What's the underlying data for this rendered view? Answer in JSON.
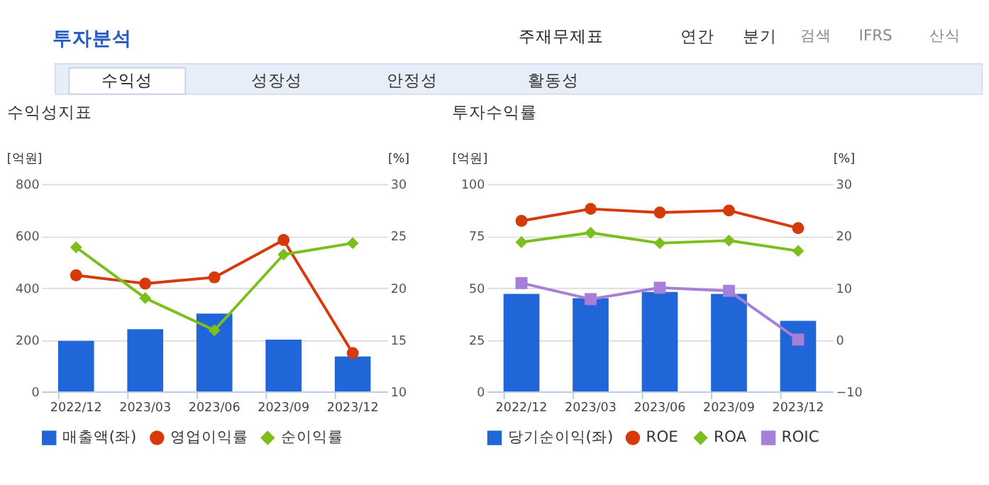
{
  "chart_data": [
    {
      "type": "bar",
      "title": "수익성지표",
      "ylabel": "[억원]",
      "y2label": "[%]",
      "annotations": [
        "투자분석",
        "주재무제표",
        "연간",
        "분기",
        "검색",
        "IFRS",
        "산식",
        "수익성",
        "성장성",
        "안정성",
        "활동성"
      ],
      "categories": [
        "2022/12",
        "2023/03",
        "2023/06",
        "2023/09",
        "2023/12"
      ],
      "series": [
        {
          "name": "매출액(좌)",
          "color": "#2166d9",
          "values": [
            195,
            240,
            300,
            200,
            135
          ]
        },
        {
          "name": "영업이익률",
          "type": "line",
          "axis": "y2",
          "marker": "circle",
          "color": "#d63a0a",
          "values": [
            21.2,
            20.4,
            21.0,
            24.6,
            13.7
          ]
        },
        {
          "name": "순이익률",
          "type": "line",
          "axis": "y2",
          "marker": "diamond",
          "color": "#7cbf1c",
          "values": [
            23.9,
            19.0,
            15.9,
            23.2,
            24.3
          ]
        }
      ],
      "ylim": [
        0,
        800
      ],
      "yticks": [
        0,
        200,
        400,
        600,
        800
      ],
      "y2lim": [
        10,
        30
      ],
      "y2ticks": [
        10,
        15,
        20,
        25,
        30
      ],
      "grid": "y",
      "legend": "bottom"
    },
    {
      "type": "bar",
      "title": "투자수익률",
      "ylabel": "[억원]",
      "y2label": "[%]",
      "categories": [
        "2022/12",
        "2023/03",
        "2023/06",
        "2023/09",
        "2023/12"
      ],
      "series": [
        {
          "name": "당기순이익(좌)",
          "color": "#2166d9",
          "values": [
            47,
            45,
            48,
            47,
            34
          ]
        },
        {
          "name": "ROE",
          "type": "line",
          "axis": "y2",
          "marker": "circle",
          "color": "#d63a0a",
          "values": [
            22.9,
            25.2,
            24.5,
            24.9,
            21.5
          ]
        },
        {
          "name": "ROA",
          "type": "line",
          "axis": "y2",
          "marker": "diamond",
          "color": "#7cbf1c",
          "values": [
            18.8,
            20.6,
            18.6,
            19.1,
            17.1
          ]
        },
        {
          "name": "ROIC",
          "type": "line",
          "axis": "y2",
          "marker": "square",
          "color": "#a57fd8",
          "values": [
            10.9,
            7.8,
            10.0,
            9.4,
            0
          ]
        }
      ],
      "ylim": [
        0,
        100
      ],
      "yticks": [
        0,
        25,
        50,
        75,
        100
      ],
      "y2lim": [
        -10,
        30
      ],
      "y2ticks": [
        -10,
        0,
        10,
        20,
        30
      ],
      "grid": "y",
      "legend": "bottom"
    }
  ]
}
